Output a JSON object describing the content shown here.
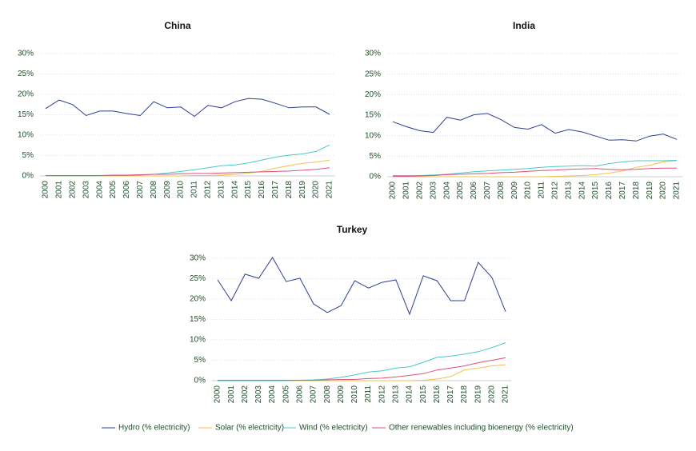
{
  "chart_data": [
    {
      "type": "line",
      "title": "China",
      "categories": [
        "2000",
        "2001",
        "2002",
        "2003",
        "2004",
        "2005",
        "2006",
        "2007",
        "2008",
        "2009",
        "2010",
        "2011",
        "2012",
        "2013",
        "2014",
        "2015",
        "2016",
        "2017",
        "2018",
        "2019",
        "2020",
        "2021"
      ],
      "ylim": [
        0,
        30
      ],
      "yticks": [
        {
          "value": 0,
          "label": "0%"
        },
        {
          "value": 5,
          "label": "5%"
        },
        {
          "value": 10,
          "label": "10%"
        },
        {
          "value": 15,
          "label": "15%"
        },
        {
          "value": 20,
          "label": "20%"
        },
        {
          "value": 25,
          "label": "25%"
        },
        {
          "value": 30,
          "label": "30%"
        }
      ],
      "grid": true,
      "series": [
        {
          "name": "Hydro (% electricity)",
          "color": "#2e3f8f",
          "values": [
            16.5,
            18.6,
            17.5,
            14.8,
            15.9,
            15.9,
            15.3,
            14.8,
            18.2,
            16.7,
            16.9,
            14.6,
            17.3,
            16.7,
            18.2,
            19.0,
            18.8,
            17.8,
            16.7,
            16.9,
            16.9,
            15.1
          ]
        },
        {
          "name": "Solar (% electricity)",
          "color": "#f2c14e",
          "values": [
            0,
            0,
            0,
            0,
            0,
            0,
            0,
            0,
            0,
            0,
            0,
            0.1,
            0.1,
            0.2,
            0.4,
            0.7,
            1.1,
            1.9,
            2.5,
            3.1,
            3.4,
            3.9
          ]
        },
        {
          "name": "Wind (% electricity)",
          "color": "#49c8c8",
          "values": [
            0.05,
            0.05,
            0.05,
            0.05,
            0.05,
            0.1,
            0.1,
            0.2,
            0.4,
            0.7,
            1.1,
            1.5,
            2.0,
            2.5,
            2.7,
            3.2,
            3.9,
            4.6,
            5.1,
            5.4,
            6.0,
            7.6
          ]
        },
        {
          "name": "Other renewables including bioenergy (% electricity)",
          "color": "#e0507a",
          "values": [
            0.1,
            0.1,
            0.1,
            0.1,
            0.1,
            0.2,
            0.2,
            0.3,
            0.4,
            0.4,
            0.5,
            0.6,
            0.6,
            0.7,
            0.8,
            0.9,
            1.0,
            1.1,
            1.2,
            1.4,
            1.6,
            2.0
          ]
        }
      ]
    },
    {
      "type": "line",
      "title": "India",
      "categories": [
        "2000",
        "2001",
        "2002",
        "2003",
        "2004",
        "2005",
        "2006",
        "2007",
        "2008",
        "2009",
        "2010",
        "2011",
        "2012",
        "2013",
        "2014",
        "2015",
        "2016",
        "2017",
        "2018",
        "2019",
        "2020",
        "2021"
      ],
      "ylim": [
        0,
        30
      ],
      "yticks": [
        {
          "value": 0,
          "label": "0%"
        },
        {
          "value": 5,
          "label": "5%"
        },
        {
          "value": 10,
          "label": "10%"
        },
        {
          "value": 15,
          "label": "15%"
        },
        {
          "value": 20,
          "label": "20%"
        },
        {
          "value": 25,
          "label": "25%"
        },
        {
          "value": 30,
          "label": "30%"
        }
      ],
      "grid": true,
      "series": [
        {
          "color": "#2e3f8f",
          "values": [
            13.4,
            12.2,
            11.2,
            10.8,
            14.5,
            13.8,
            15.1,
            15.4,
            13.9,
            12.0,
            11.6,
            12.7,
            10.6,
            11.5,
            10.9,
            9.9,
            8.9,
            9.0,
            8.7,
            9.9,
            10.4,
            9.1
          ]
        },
        {
          "color": "#f2c14e",
          "values": [
            0,
            0,
            0,
            0,
            0,
            0,
            0,
            0,
            0,
            0,
            0,
            0,
            0.1,
            0.2,
            0.3,
            0.5,
            0.9,
            1.4,
            2.3,
            2.8,
            3.6,
            3.9
          ]
        },
        {
          "color": "#49c8c8",
          "values": [
            0.3,
            0.3,
            0.3,
            0.4,
            0.6,
            0.9,
            1.2,
            1.4,
            1.6,
            1.8,
            2.0,
            2.3,
            2.5,
            2.6,
            2.7,
            2.6,
            3.2,
            3.6,
            3.9,
            3.9,
            3.9,
            4.0
          ]
        },
        {
          "color": "#e0507a",
          "values": [
            0.1,
            0.1,
            0.2,
            0.3,
            0.5,
            0.6,
            0.7,
            0.8,
            1.0,
            1.1,
            1.3,
            1.5,
            1.6,
            1.8,
            1.9,
            2.0,
            1.8,
            1.7,
            1.8,
            2.0,
            2.1,
            2.1
          ]
        }
      ]
    },
    {
      "type": "line",
      "title": "Turkey",
      "categories": [
        "2000",
        "2001",
        "2002",
        "2003",
        "2004",
        "2005",
        "2006",
        "2007",
        "2008",
        "2009",
        "2010",
        "2011",
        "2012",
        "2013",
        "2014",
        "2015",
        "2016",
        "2017",
        "2018",
        "2019",
        "2020",
        "2021"
      ],
      "ylim": [
        0,
        30
      ],
      "yticks": [
        {
          "value": 0,
          "label": "0%"
        },
        {
          "value": 5,
          "label": "5%"
        },
        {
          "value": 10,
          "label": "10%"
        },
        {
          "value": 15,
          "label": "15%"
        },
        {
          "value": 20,
          "label": "20%"
        },
        {
          "value": 25,
          "label": "25%"
        },
        {
          "value": 30,
          "label": "30%"
        }
      ],
      "grid": true,
      "series": [
        {
          "color": "#2e3f8f",
          "values": [
            24.7,
            19.6,
            26.1,
            25.1,
            30.2,
            24.3,
            25.1,
            18.8,
            16.7,
            18.4,
            24.5,
            22.7,
            24.1,
            24.7,
            16.3,
            25.7,
            24.5,
            19.6,
            19.6,
            29.0,
            25.3,
            16.9
          ]
        },
        {
          "color": "#f2c14e",
          "values": [
            0,
            0,
            0,
            0,
            0,
            0,
            0,
            0,
            0,
            0,
            0,
            0,
            0,
            0,
            0,
            0.1,
            0.4,
            1.0,
            2.6,
            3.1,
            3.6,
            3.9
          ]
        },
        {
          "color": "#49c8c8",
          "values": [
            0,
            0,
            0,
            0,
            0,
            0,
            0.1,
            0.2,
            0.4,
            0.8,
            1.4,
            2.1,
            2.4,
            3.1,
            3.4,
            4.5,
            5.7,
            6.0,
            6.5,
            7.1,
            8.1,
            9.3
          ]
        },
        {
          "color": "#e0507a",
          "values": [
            0.1,
            0.1,
            0.1,
            0.1,
            0.1,
            0.1,
            0.1,
            0.1,
            0.2,
            0.3,
            0.3,
            0.5,
            0.6,
            0.9,
            1.3,
            1.7,
            2.6,
            3.1,
            3.6,
            4.4,
            5.0,
            5.6
          ]
        }
      ]
    }
  ]
}
